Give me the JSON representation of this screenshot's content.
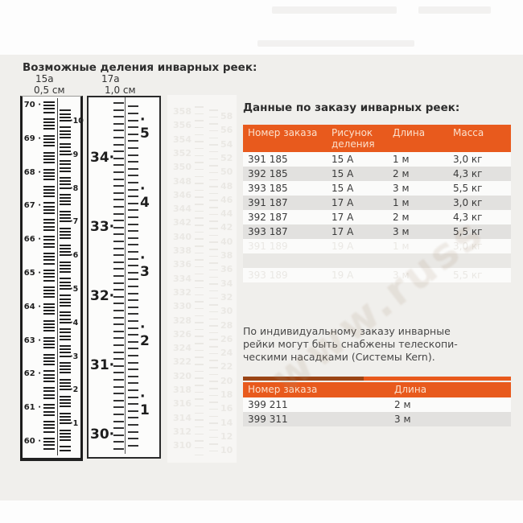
{
  "page": {
    "section_title": "Возможные деления инварных реек:"
  },
  "rulers": {
    "r15": {
      "label": "15а",
      "scale": "0,5 см",
      "left_numbers": [
        70,
        69,
        68,
        67,
        66,
        65,
        64,
        63,
        62,
        61,
        60
      ],
      "right_numbers": [
        10,
        9,
        8,
        7,
        6,
        5,
        4,
        3,
        2,
        1
      ]
    },
    "r17": {
      "label": "17а",
      "scale": "1,0 см",
      "left_numbers": [
        34,
        33,
        32,
        31,
        30
      ],
      "right_numbers": [
        5,
        4,
        3,
        2,
        1
      ]
    },
    "ghost": {
      "left_numbers": [
        358,
        356,
        354,
        352,
        350,
        348,
        346,
        344,
        342,
        340,
        338,
        336,
        334,
        332,
        330,
        328,
        326,
        324,
        322,
        320,
        318,
        316,
        314,
        312,
        310
      ],
      "right_numbers": [
        58,
        56,
        54,
        52,
        50,
        48,
        46,
        44,
        42,
        40,
        38,
        36,
        34,
        32,
        30,
        28,
        26,
        24,
        22,
        20,
        18,
        16,
        14,
        12,
        10
      ]
    }
  },
  "order": {
    "heading": "Данные по заказу инварных реек:",
    "table1": {
      "headers": [
        "Номер заказа",
        "Рисунок деления",
        "Длина",
        "Масса"
      ],
      "rows": [
        [
          "391 185",
          "15 А",
          "1 м",
          "3,0 кг"
        ],
        [
          "392 185",
          "15 А",
          "2 м",
          "4,3 кг"
        ],
        [
          "393 185",
          "15 А",
          "3 м",
          "5,5 кг"
        ],
        [
          "391 187",
          "17 А",
          "1 м",
          "3,0 кг"
        ],
        [
          "392 187",
          "17 А",
          "2 м",
          "4,3 кг"
        ],
        [
          "393 187",
          "17 А",
          "3 м",
          "5,5 кг"
        ],
        [
          "391 189",
          "19 А",
          "1 м",
          "3,0 кг"
        ],
        [
          "",
          "",
          "",
          ""
        ],
        [
          "393 189",
          "19 А",
          "3 м",
          "5,5 кг"
        ]
      ],
      "ghost_rows_from": 6
    },
    "note_lines": [
      "По индивидуальному заказу инварные",
      "рейки могут быть снабжены телескопи-",
      "ческими насадками (Системы Kern)."
    ],
    "table2": {
      "headers": [
        "Номер заказа",
        "Длина"
      ],
      "rows": [
        [
          "399 211",
          "2 м"
        ],
        [
          "399 311",
          "3 м"
        ]
      ]
    }
  },
  "watermark": "www.russ",
  "colors": {
    "accent_orange": "#e85a1d",
    "accent_dark": "#9a4516",
    "header_text": "#fbe0cc",
    "row_gray": "#e2e1df",
    "row_white": "#fbfbfa",
    "ghost_row_gray": "#e9e8e5",
    "ghost_text": "#eae8e4",
    "page_band": "#f0efec"
  }
}
